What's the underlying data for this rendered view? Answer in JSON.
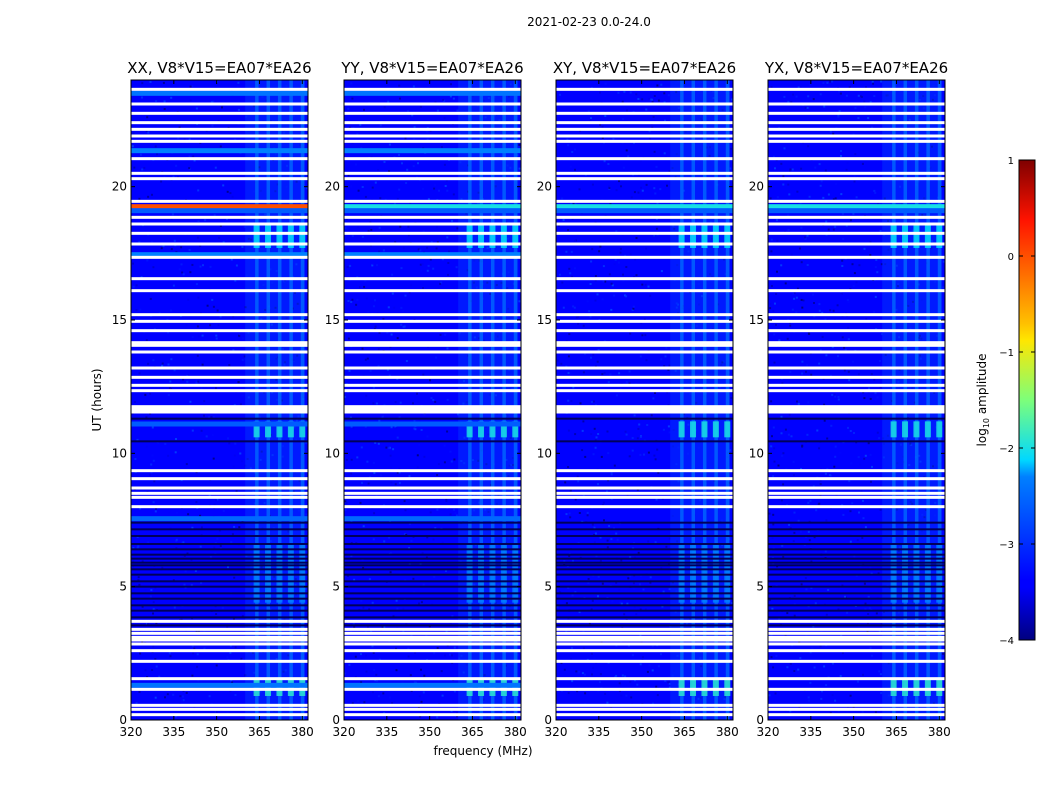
{
  "figure_title": "2021-02-23 0.0-24.0",
  "chart_data": {
    "type": "heatmap",
    "title": "2021-02-23 0.0-24.0",
    "xlabel": "frequency (MHz)",
    "ylabel": "UT (hours)",
    "xlim": [
      320,
      382
    ],
    "ylim": [
      0,
      24
    ],
    "x_ticks": [
      "320",
      "335",
      "350",
      "365",
      "380"
    ],
    "y_ticks": [
      "0",
      "5",
      "10",
      "15",
      "20"
    ],
    "panels": [
      {
        "title": "XX, V8*V15=EA07*EA26",
        "polarization": "XX"
      },
      {
        "title": "YY, V8*V15=EA07*EA26",
        "polarization": "YY"
      },
      {
        "title": "XY, V8*V15=EA07*EA26",
        "polarization": "XY"
      },
      {
        "title": "YX, V8*V15=EA07*EA26",
        "polarization": "YX"
      }
    ],
    "colorbar": {
      "label": "log10 amplitude",
      "range": [
        -4,
        1
      ],
      "ticks": [
        "1",
        "0",
        "−1",
        "−2",
        "−3",
        "−4"
      ],
      "colormap": "jet"
    },
    "background_level": -3.4,
    "rfi_freq_range_mhz": [
      360,
      381
    ],
    "rfi_channels_mhz": [
      364,
      368,
      372,
      376,
      380
    ],
    "flagged_rows_ut": [
      0.2,
      0.4,
      0.55,
      1.15,
      1.55,
      2.2,
      2.6,
      2.85,
      3.0,
      3.1,
      3.25,
      3.4,
      3.7,
      8.0,
      8.35,
      8.5,
      8.7,
      9.05,
      9.35,
      11.55,
      11.65,
      11.75,
      12.35,
      12.55,
      12.85,
      13.2,
      13.8,
      14.05,
      14.15,
      14.6,
      14.95,
      15.2,
      16.1,
      16.55,
      17.35,
      17.85,
      18.25,
      18.6,
      18.85,
      19.45,
      20.3,
      20.5,
      21.05,
      21.7,
      21.9,
      22.15,
      22.4,
      22.75,
      23.1,
      23.65
    ],
    "dark_rows_ut": [
      3.55,
      3.85,
      4.1,
      4.3,
      4.55,
      4.75,
      5.0,
      5.2,
      5.45,
      5.65,
      5.8,
      5.9,
      6.05,
      6.2,
      6.4,
      6.6,
      6.9,
      7.15,
      7.4,
      10.45,
      11.3
    ],
    "bright_rows": [
      {
        "ut": 19.25,
        "level": 0.0,
        "panels": [
          "XX"
        ]
      },
      {
        "ut": 19.25,
        "level": -2.0,
        "panels": [
          "YY",
          "XY",
          "YX"
        ]
      },
      {
        "ut": 17.45,
        "level": -2.3,
        "panels": [
          "XX",
          "YY"
        ]
      },
      {
        "ut": 21.35,
        "level": -2.3,
        "panels": [
          "XX",
          "YY"
        ]
      },
      {
        "ut": 23.5,
        "level": -2.4,
        "panels": [
          "XX",
          "YY"
        ]
      },
      {
        "ut": 11.1,
        "level": -2.6,
        "panels": [
          "XX",
          "YY"
        ]
      },
      {
        "ut": 7.55,
        "level": -2.5,
        "panels": [
          "XX",
          "YY"
        ]
      },
      {
        "ut": 1.3,
        "level": -2.4,
        "panels": [
          "XX",
          "YY"
        ]
      },
      {
        "ut": 19.1,
        "level": -2.6,
        "panels": [
          "XX",
          "YY",
          "XY",
          "YX"
        ]
      }
    ]
  }
}
